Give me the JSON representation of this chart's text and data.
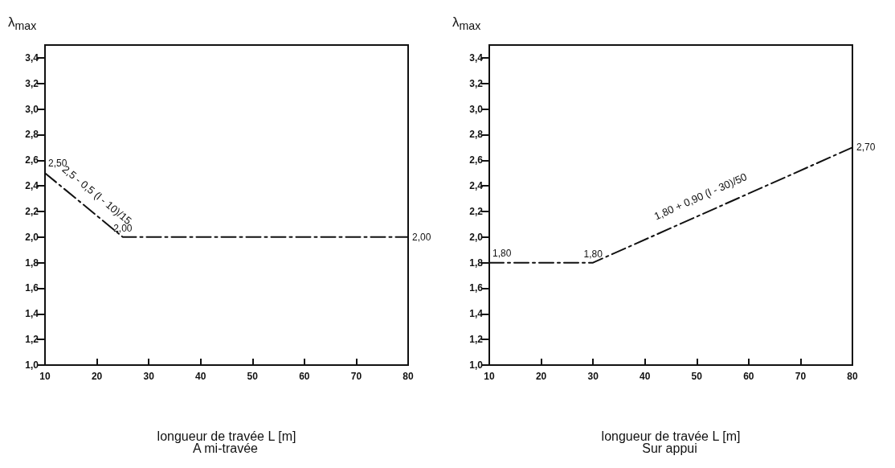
{
  "chart_data": [
    {
      "type": "line",
      "title": "A mi-travée",
      "xlabel": "longueur de travée L [m]",
      "ylabel": "λ$_{max}$",
      "xlim": [
        10,
        80
      ],
      "xticks": [
        10,
        20,
        30,
        40,
        50,
        60,
        70,
        80
      ],
      "ylim": [
        1,
        3.5
      ],
      "yticks": [
        {
          "value": 1,
          "label": "1,0"
        },
        {
          "value": 1.2,
          "label": "1,2"
        },
        {
          "value": 1.4,
          "label": "1,4"
        },
        {
          "value": 1.6,
          "label": "1,6"
        },
        {
          "value": 1.8,
          "label": "1,8"
        },
        {
          "value": 2,
          "label": "2,0"
        },
        {
          "value": 2.2,
          "label": "2,2"
        },
        {
          "value": 2.4,
          "label": "2,4"
        },
        {
          "value": 2.6,
          "label": "2,6"
        },
        {
          "value": 2.8,
          "label": "2,8"
        },
        {
          "value": 3,
          "label": "3,0"
        },
        {
          "value": 3.2,
          "label": "3,2"
        },
        {
          "value": 3.4,
          "label": "3,4"
        }
      ],
      "grid": false,
      "marker": "none",
      "line_style": "dashed",
      "series": [
        {
          "color": "#111111",
          "x": [
            10,
            25,
            80
          ],
          "values": [
            2.5,
            2.0,
            2.0
          ],
          "value_labels": [
            "2,50",
            "2,00",
            "2,00"
          ]
        }
      ],
      "annotations": [
        {
          "text": "2,5 - 0,5 (l - 10)/15",
          "x": 18,
          "y": 2.23
        }
      ]
    },
    {
      "type": "line",
      "title": "Sur appui",
      "xlabel": "longueur de travée L [m]",
      "ylabel": "λ$_{max}$",
      "xlim": [
        10,
        80
      ],
      "xticks": [
        10,
        20,
        30,
        40,
        50,
        60,
        70,
        80
      ],
      "ylim": [
        1,
        3.5
      ],
      "yticks": [
        {
          "value": 1,
          "label": "1,0"
        },
        {
          "value": 1.2,
          "label": "1,2"
        },
        {
          "value": 1.4,
          "label": "1,4"
        },
        {
          "value": 1.6,
          "label": "1,6"
        },
        {
          "value": 1.8,
          "label": "1,8"
        },
        {
          "value": 2,
          "label": "2,0"
        },
        {
          "value": 2.2,
          "label": "2,2"
        },
        {
          "value": 2.4,
          "label": "2,4"
        },
        {
          "value": 2.6,
          "label": "2,6"
        },
        {
          "value": 2.8,
          "label": "2,8"
        },
        {
          "value": 3,
          "label": "3,0"
        },
        {
          "value": 3.2,
          "label": "3,2"
        },
        {
          "value": 3.4,
          "label": "3,4"
        }
      ],
      "grid": false,
      "marker": "none",
      "line_style": "dashed",
      "series": [
        {
          "color": "#111111",
          "x": [
            10,
            30,
            80
          ],
          "values": [
            1.8,
            1.8,
            2.7
          ],
          "value_labels": [
            "1,80",
            "1,80",
            "2,70"
          ]
        }
      ],
      "annotations": [
        {
          "text": "1,80 + 0,90 (l - 30)/50",
          "x": 52,
          "y": 2.2
        }
      ]
    }
  ]
}
